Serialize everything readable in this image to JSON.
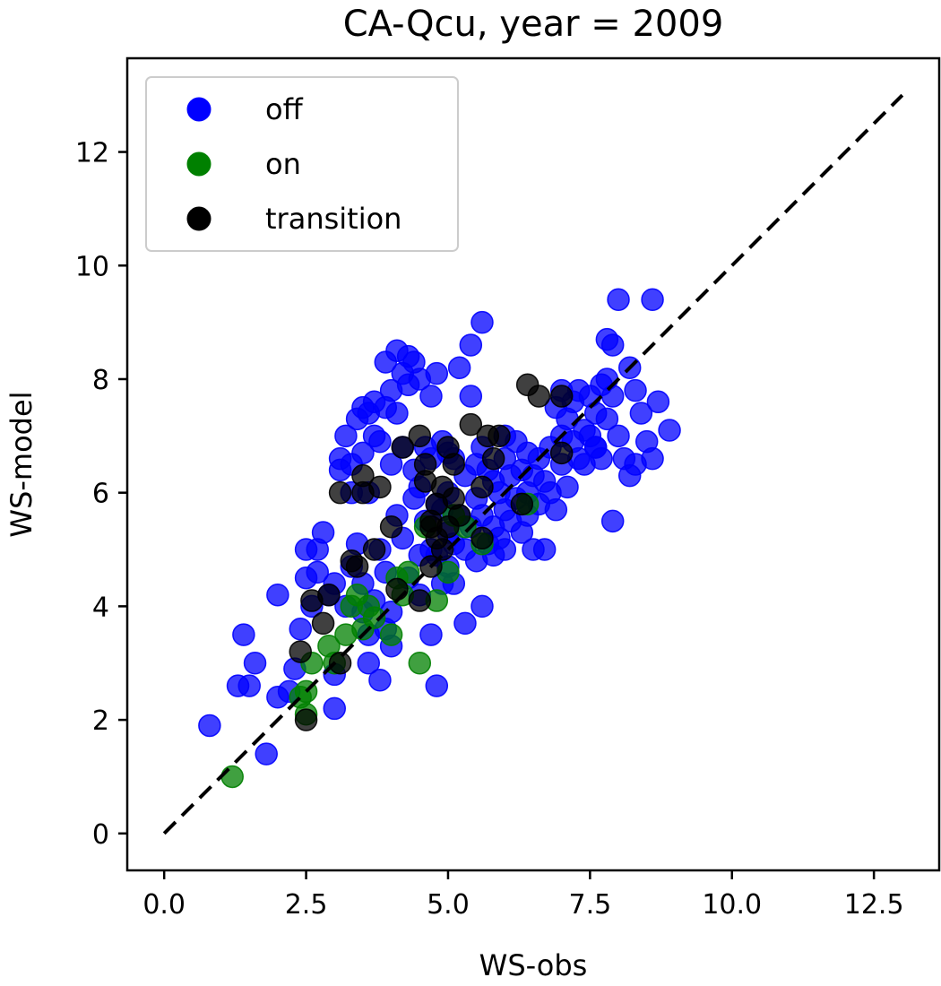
{
  "chart_data": {
    "type": "scatter",
    "title": "CA-Qcu, year = 2009",
    "xlabel": "WS-obs",
    "ylabel": "WS-model",
    "xlim": [
      -0.65,
      13.65
    ],
    "ylim": [
      -0.65,
      13.65
    ],
    "x_ticks": [
      0.0,
      2.5,
      5.0,
      7.5,
      10.0,
      12.5
    ],
    "x_tick_labels": [
      "0.0",
      "2.5",
      "5.0",
      "7.5",
      "10.0",
      "12.5"
    ],
    "y_ticks": [
      0,
      2,
      4,
      6,
      8,
      10,
      12
    ],
    "y_tick_labels": [
      "0",
      "2",
      "4",
      "6",
      "8",
      "10",
      "12"
    ],
    "grid": false,
    "legend_position": "top-left",
    "reference_line": {
      "style": "dashed",
      "color": "#000000",
      "x": [
        0,
        13
      ],
      "y": [
        0,
        13
      ]
    },
    "series": [
      {
        "name": "off",
        "color": "#0000ff",
        "points": [
          [
            0.8,
            1.9
          ],
          [
            1.4,
            3.5
          ],
          [
            1.6,
            3.0
          ],
          [
            1.3,
            2.6
          ],
          [
            1.5,
            2.6
          ],
          [
            1.8,
            1.4
          ],
          [
            2.0,
            4.2
          ],
          [
            2.0,
            2.4
          ],
          [
            2.2,
            2.5
          ],
          [
            2.3,
            2.9
          ],
          [
            2.4,
            3.6
          ],
          [
            2.5,
            4.5
          ],
          [
            2.5,
            5.0
          ],
          [
            2.6,
            4.0
          ],
          [
            2.7,
            5.0
          ],
          [
            2.7,
            4.6
          ],
          [
            2.8,
            5.3
          ],
          [
            2.9,
            4.2
          ],
          [
            3.0,
            2.2
          ],
          [
            3.0,
            2.8
          ],
          [
            3.0,
            4.4
          ],
          [
            3.1,
            6.6
          ],
          [
            3.1,
            6.4
          ],
          [
            3.2,
            7.0
          ],
          [
            3.2,
            4.0
          ],
          [
            3.3,
            6.0
          ],
          [
            3.3,
            6.5
          ],
          [
            3.3,
            4.7
          ],
          [
            3.4,
            7.3
          ],
          [
            3.4,
            5.1
          ],
          [
            3.5,
            7.5
          ],
          [
            3.5,
            6.7
          ],
          [
            3.5,
            4.4
          ],
          [
            3.5,
            3.9
          ],
          [
            3.6,
            7.4
          ],
          [
            3.6,
            6.0
          ],
          [
            3.6,
            3.5
          ],
          [
            3.6,
            3.0
          ],
          [
            3.7,
            7.6
          ],
          [
            3.7,
            7.0
          ],
          [
            3.7,
            4.1
          ],
          [
            3.8,
            6.9
          ],
          [
            3.8,
            5.0
          ],
          [
            3.8,
            2.7
          ],
          [
            3.9,
            8.3
          ],
          [
            3.9,
            7.5
          ],
          [
            3.9,
            4.6
          ],
          [
            3.9,
            3.6
          ],
          [
            4.0,
            7.8
          ],
          [
            4.0,
            6.5
          ],
          [
            4.0,
            3.9
          ],
          [
            4.0,
            3.3
          ],
          [
            4.1,
            8.5
          ],
          [
            4.1,
            7.4
          ],
          [
            4.1,
            5.6
          ],
          [
            4.2,
            8.1
          ],
          [
            4.2,
            6.8
          ],
          [
            4.2,
            5.2
          ],
          [
            4.3,
            8.4
          ],
          [
            4.3,
            7.9
          ],
          [
            4.3,
            4.5
          ],
          [
            4.4,
            8.3
          ],
          [
            4.4,
            6.4
          ],
          [
            4.4,
            5.9
          ],
          [
            4.5,
            8.0
          ],
          [
            4.5,
            6.1
          ],
          [
            4.5,
            4.9
          ],
          [
            4.5,
            4.2
          ],
          [
            4.6,
            6.8
          ],
          [
            4.6,
            5.5
          ],
          [
            4.7,
            7.7
          ],
          [
            4.7,
            6.6
          ],
          [
            4.7,
            5.0
          ],
          [
            4.7,
            3.5
          ],
          [
            4.8,
            8.1
          ],
          [
            4.8,
            5.8
          ],
          [
            4.8,
            4.9
          ],
          [
            4.8,
            2.6
          ],
          [
            4.9,
            6.9
          ],
          [
            4.9,
            5.7
          ],
          [
            4.9,
            4.4
          ],
          [
            5.0,
            6.7
          ],
          [
            5.0,
            6.0
          ],
          [
            5.0,
            5.3
          ],
          [
            5.0,
            4.7
          ],
          [
            5.1,
            6.6
          ],
          [
            5.1,
            5.1
          ],
          [
            5.1,
            4.4
          ],
          [
            5.2,
            8.2
          ],
          [
            5.2,
            5.6
          ],
          [
            5.3,
            6.3
          ],
          [
            5.3,
            5.0
          ],
          [
            5.3,
            3.7
          ],
          [
            5.4,
            8.6
          ],
          [
            5.4,
            7.7
          ],
          [
            5.4,
            5.4
          ],
          [
            5.5,
            6.5
          ],
          [
            5.5,
            5.9
          ],
          [
            5.5,
            4.8
          ],
          [
            5.6,
            9.0
          ],
          [
            5.6,
            6.8
          ],
          [
            5.6,
            5.6
          ],
          [
            5.6,
            4.0
          ],
          [
            5.7,
            6.4
          ],
          [
            5.7,
            5.1
          ],
          [
            5.8,
            6.2
          ],
          [
            5.8,
            5.4
          ],
          [
            5.8,
            4.9
          ],
          [
            5.9,
            6.0
          ],
          [
            5.9,
            5.2
          ],
          [
            6.0,
            7.0
          ],
          [
            6.0,
            6.6
          ],
          [
            6.0,
            5.7
          ],
          [
            6.0,
            5.0
          ],
          [
            6.1,
            6.3
          ],
          [
            6.1,
            5.5
          ],
          [
            6.2,
            6.9
          ],
          [
            6.2,
            5.9
          ],
          [
            6.3,
            6.4
          ],
          [
            6.3,
            5.3
          ],
          [
            6.4,
            6.7
          ],
          [
            6.4,
            6.0
          ],
          [
            6.4,
            5.6
          ],
          [
            6.5,
            6.3
          ],
          [
            6.5,
            5.0
          ],
          [
            6.6,
            6.6
          ],
          [
            6.6,
            5.8
          ],
          [
            6.7,
            6.2
          ],
          [
            6.7,
            5.0
          ],
          [
            6.8,
            6.8
          ],
          [
            6.8,
            6.0
          ],
          [
            6.9,
            7.5
          ],
          [
            6.9,
            5.7
          ],
          [
            7.0,
            7.8
          ],
          [
            7.0,
            7.0
          ],
          [
            7.0,
            6.5
          ],
          [
            7.1,
            7.3
          ],
          [
            7.1,
            6.1
          ],
          [
            7.2,
            7.6
          ],
          [
            7.2,
            6.9
          ],
          [
            7.3,
            7.8
          ],
          [
            7.3,
            6.6
          ],
          [
            7.4,
            7.1
          ],
          [
            7.4,
            6.5
          ],
          [
            7.5,
            7.7
          ],
          [
            7.5,
            7.0
          ],
          [
            7.6,
            7.4
          ],
          [
            7.6,
            6.8
          ],
          [
            7.7,
            7.9
          ],
          [
            7.7,
            6.6
          ],
          [
            7.8,
            8.7
          ],
          [
            7.8,
            8.0
          ],
          [
            7.8,
            7.3
          ],
          [
            7.9,
            8.6
          ],
          [
            7.9,
            7.7
          ],
          [
            7.9,
            5.5
          ],
          [
            8.0,
            9.4
          ],
          [
            8.0,
            7.0
          ],
          [
            8.1,
            6.6
          ],
          [
            8.2,
            6.3
          ],
          [
            8.2,
            8.2
          ],
          [
            8.3,
            7.8
          ],
          [
            8.3,
            6.5
          ],
          [
            8.4,
            7.4
          ],
          [
            8.5,
            6.9
          ],
          [
            8.6,
            9.4
          ],
          [
            8.6,
            6.6
          ],
          [
            8.7,
            7.6
          ],
          [
            8.9,
            7.1
          ],
          [
            7.6,
            6.8
          ]
        ]
      },
      {
        "name": "on",
        "color": "#008000",
        "points": [
          [
            1.2,
            1.0
          ],
          [
            2.4,
            2.4
          ],
          [
            2.5,
            2.5
          ],
          [
            2.5,
            2.1
          ],
          [
            2.6,
            3.0
          ],
          [
            2.9,
            3.3
          ],
          [
            3.0,
            3.0
          ],
          [
            3.2,
            3.5
          ],
          [
            3.3,
            4.0
          ],
          [
            3.4,
            4.2
          ],
          [
            3.5,
            3.6
          ],
          [
            3.6,
            4.0
          ],
          [
            3.7,
            3.8
          ],
          [
            4.0,
            3.5
          ],
          [
            4.1,
            4.5
          ],
          [
            4.2,
            4.2
          ],
          [
            4.3,
            4.6
          ],
          [
            4.5,
            3.0
          ],
          [
            4.6,
            5.4
          ],
          [
            4.8,
            4.1
          ],
          [
            5.0,
            4.6
          ],
          [
            5.1,
            5.6
          ],
          [
            5.3,
            5.4
          ],
          [
            5.6,
            5.1
          ],
          [
            6.4,
            5.8
          ]
        ]
      },
      {
        "name": "transition",
        "color": "#000000",
        "points": [
          [
            2.4,
            3.2
          ],
          [
            2.5,
            2.0
          ],
          [
            2.6,
            4.1
          ],
          [
            2.8,
            3.7
          ],
          [
            2.9,
            4.2
          ],
          [
            3.1,
            3.0
          ],
          [
            3.1,
            6.0
          ],
          [
            3.3,
            4.8
          ],
          [
            3.4,
            4.7
          ],
          [
            3.5,
            6.3
          ],
          [
            3.5,
            6.0
          ],
          [
            3.7,
            5.0
          ],
          [
            3.8,
            6.1
          ],
          [
            4.0,
            5.4
          ],
          [
            4.1,
            4.3
          ],
          [
            4.2,
            6.8
          ],
          [
            4.5,
            4.1
          ],
          [
            4.5,
            7.0
          ],
          [
            4.6,
            6.5
          ],
          [
            4.6,
            6.2
          ],
          [
            4.7,
            4.7
          ],
          [
            4.7,
            5.4
          ],
          [
            4.7,
            5.5
          ],
          [
            4.8,
            5.8
          ],
          [
            4.8,
            5.2
          ],
          [
            4.9,
            6.1
          ],
          [
            4.9,
            5.0
          ],
          [
            5.0,
            6.8
          ],
          [
            5.0,
            5.4
          ],
          [
            5.1,
            6.5
          ],
          [
            5.1,
            5.9
          ],
          [
            5.2,
            5.6
          ],
          [
            5.4,
            7.2
          ],
          [
            5.6,
            6.1
          ],
          [
            5.6,
            5.2
          ],
          [
            5.7,
            7.0
          ],
          [
            5.8,
            6.6
          ],
          [
            5.9,
            7.0
          ],
          [
            6.3,
            5.8
          ],
          [
            6.4,
            7.9
          ],
          [
            6.6,
            7.7
          ],
          [
            7.0,
            6.7
          ],
          [
            7.0,
            7.7
          ]
        ]
      }
    ]
  }
}
